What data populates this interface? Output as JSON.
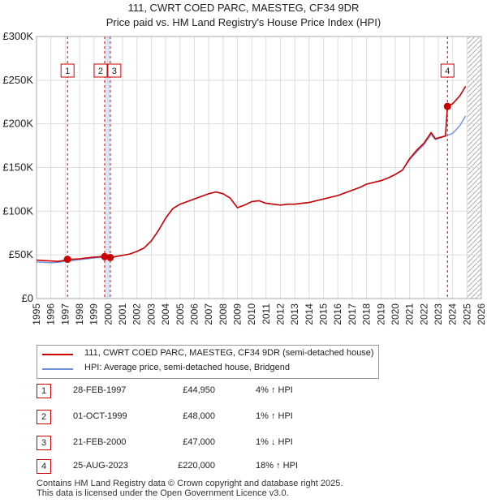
{
  "title": "111, CWRT COED PARC, MAESTEG, CF34 9DR",
  "subtitle": "Price paid vs. HM Land Registry's House Price Index (HPI)",
  "colors": {
    "property": "#cc0000",
    "hpi": "#6a8fd8",
    "shade": "#dce6f5",
    "grid": "#dddddd",
    "future_hatch": "#aaaaaa"
  },
  "chart_data": {
    "type": "line",
    "title": "111, CWRT COED PARC, MAESTEG, CF34 9DR",
    "subtitle": "Price paid vs. HM Land Registry's House Price Index (HPI)",
    "xlabel": "",
    "ylabel": "",
    "xlim": [
      1995,
      2026
    ],
    "ylim": [
      0,
      300000
    ],
    "x_ticks": [
      1995,
      1996,
      1997,
      1998,
      1999,
      2000,
      2001,
      2002,
      2003,
      2004,
      2005,
      2006,
      2007,
      2008,
      2009,
      2010,
      2011,
      2012,
      2013,
      2014,
      2015,
      2016,
      2017,
      2018,
      2019,
      2020,
      2021,
      2022,
      2023,
      2024,
      2025,
      2026
    ],
    "y_ticks": [
      {
        "value": 0,
        "label": "£0"
      },
      {
        "value": 50000,
        "label": "£50K"
      },
      {
        "value": 100000,
        "label": "£100K"
      },
      {
        "value": 150000,
        "label": "£150K"
      },
      {
        "value": 200000,
        "label": "£200K"
      },
      {
        "value": 250000,
        "label": "£250K"
      },
      {
        "value": 300000,
        "label": "£300K"
      }
    ],
    "grid": true,
    "future_from": 2025.0,
    "series": [
      {
        "name": "111, CWRT COED PARC, MAESTEG, CF34 9DR (semi-detached house)",
        "color": "#cc0000",
        "points": [
          [
            1995.0,
            44000
          ],
          [
            1995.5,
            43500
          ],
          [
            1996.0,
            43000
          ],
          [
            1996.5,
            42500
          ],
          [
            1997.0,
            44000
          ],
          [
            1997.16,
            44950
          ],
          [
            1997.5,
            45000
          ],
          [
            1998.0,
            45500
          ],
          [
            1998.5,
            46500
          ],
          [
            1999.0,
            47500
          ],
          [
            1999.5,
            48000
          ],
          [
            1999.75,
            48000
          ],
          [
            2000.14,
            47000
          ],
          [
            2000.5,
            48000
          ],
          [
            2001.0,
            49500
          ],
          [
            2001.5,
            51000
          ],
          [
            2002.0,
            54000
          ],
          [
            2002.5,
            58000
          ],
          [
            2003.0,
            66000
          ],
          [
            2003.5,
            78000
          ],
          [
            2004.0,
            92000
          ],
          [
            2004.5,
            103000
          ],
          [
            2005.0,
            108000
          ],
          [
            2005.5,
            111000
          ],
          [
            2006.0,
            114000
          ],
          [
            2006.5,
            117000
          ],
          [
            2007.0,
            120000
          ],
          [
            2007.5,
            122000
          ],
          [
            2008.0,
            120000
          ],
          [
            2008.5,
            115000
          ],
          [
            2009.0,
            104000
          ],
          [
            2009.5,
            107000
          ],
          [
            2010.0,
            111000
          ],
          [
            2010.5,
            112000
          ],
          [
            2011.0,
            109000
          ],
          [
            2011.5,
            108000
          ],
          [
            2012.0,
            107000
          ],
          [
            2012.5,
            108000
          ],
          [
            2013.0,
            108000
          ],
          [
            2013.5,
            109000
          ],
          [
            2014.0,
            110000
          ],
          [
            2014.5,
            112000
          ],
          [
            2015.0,
            114000
          ],
          [
            2015.5,
            116000
          ],
          [
            2016.0,
            118000
          ],
          [
            2016.5,
            121000
          ],
          [
            2017.0,
            124000
          ],
          [
            2017.5,
            127000
          ],
          [
            2018.0,
            131000
          ],
          [
            2018.5,
            133000
          ],
          [
            2019.0,
            135000
          ],
          [
            2019.5,
            138000
          ],
          [
            2020.0,
            142000
          ],
          [
            2020.5,
            147000
          ],
          [
            2021.0,
            160000
          ],
          [
            2021.5,
            170000
          ],
          [
            2022.0,
            178000
          ],
          [
            2022.5,
            190000
          ],
          [
            2022.8,
            183000
          ],
          [
            2023.0,
            184000
          ],
          [
            2023.5,
            186000
          ],
          [
            2023.64,
            220000
          ],
          [
            2024.0,
            223000
          ],
          [
            2024.5,
            232000
          ],
          [
            2024.9,
            243000
          ]
        ]
      },
      {
        "name": "HPI: Average price, semi-detached house, Bridgend",
        "color": "#6a8fd8",
        "points": [
          [
            1995.0,
            42000
          ],
          [
            1995.5,
            41500
          ],
          [
            1996.0,
            41000
          ],
          [
            1996.5,
            41500
          ],
          [
            1997.0,
            42500
          ],
          [
            1997.5,
            43500
          ],
          [
            1998.0,
            44500
          ],
          [
            1998.5,
            45500
          ],
          [
            1999.0,
            46500
          ],
          [
            1999.5,
            47000
          ],
          [
            2000.0,
            47500
          ],
          [
            2000.5,
            48000
          ],
          [
            2001.0,
            49500
          ],
          [
            2001.5,
            51000
          ],
          [
            2002.0,
            54000
          ],
          [
            2002.5,
            58000
          ],
          [
            2003.0,
            66000
          ],
          [
            2003.5,
            78000
          ],
          [
            2004.0,
            92000
          ],
          [
            2004.5,
            103000
          ],
          [
            2005.0,
            108000
          ],
          [
            2005.5,
            111000
          ],
          [
            2006.0,
            114000
          ],
          [
            2006.5,
            117000
          ],
          [
            2007.0,
            120000
          ],
          [
            2007.5,
            122000
          ],
          [
            2008.0,
            120000
          ],
          [
            2008.5,
            115000
          ],
          [
            2009.0,
            104000
          ],
          [
            2009.5,
            107000
          ],
          [
            2010.0,
            111000
          ],
          [
            2010.5,
            112000
          ],
          [
            2011.0,
            109000
          ],
          [
            2011.5,
            108000
          ],
          [
            2012.0,
            107000
          ],
          [
            2012.5,
            108000
          ],
          [
            2013.0,
            108000
          ],
          [
            2013.5,
            109000
          ],
          [
            2014.0,
            110000
          ],
          [
            2014.5,
            112000
          ],
          [
            2015.0,
            114000
          ],
          [
            2015.5,
            116000
          ],
          [
            2016.0,
            118000
          ],
          [
            2016.5,
            121000
          ],
          [
            2017.0,
            124000
          ],
          [
            2017.5,
            127000
          ],
          [
            2018.0,
            131000
          ],
          [
            2018.5,
            133000
          ],
          [
            2019.0,
            135000
          ],
          [
            2019.5,
            138000
          ],
          [
            2020.0,
            142000
          ],
          [
            2020.5,
            147000
          ],
          [
            2021.0,
            159000
          ],
          [
            2021.5,
            168000
          ],
          [
            2022.0,
            176000
          ],
          [
            2022.5,
            188000
          ],
          [
            2022.8,
            182000
          ],
          [
            2023.0,
            183000
          ],
          [
            2023.5,
            186000
          ],
          [
            2024.0,
            189000
          ],
          [
            2024.5,
            198000
          ],
          [
            2024.9,
            209000
          ]
        ]
      }
    ],
    "shaded_ranges": [
      [
        1999.75,
        2000.14
      ]
    ],
    "markers": [
      {
        "label": "1",
        "x": 1997.16,
        "value": 44950
      },
      {
        "label": "2",
        "x": 1999.75,
        "value": 48000
      },
      {
        "label": "3",
        "x": 2000.14,
        "value": 47000
      },
      {
        "label": "4",
        "x": 2023.64,
        "value": 220000
      }
    ]
  },
  "legend": {
    "property_label": "111, CWRT COED PARC, MAESTEG, CF34 9DR (semi-detached house)",
    "hpi_label": "HPI: Average price, semi-detached house, Bridgend"
  },
  "transactions": [
    {
      "num": "1",
      "date": "28-FEB-1997",
      "price": "£44,950",
      "relation": "4% ↑ HPI"
    },
    {
      "num": "2",
      "date": "01-OCT-1999",
      "price": "£48,000",
      "relation": "1% ↑ HPI"
    },
    {
      "num": "3",
      "date": "21-FEB-2000",
      "price": "£47,000",
      "relation": "1% ↓ HPI"
    },
    {
      "num": "4",
      "date": "25-AUG-2023",
      "price": "£220,000",
      "relation": "18% ↑ HPI"
    }
  ],
  "footer": {
    "line1": "Contains HM Land Registry data © Crown copyright and database right 2025.",
    "line2": "This data is licensed under the Open Government Licence v3.0."
  }
}
